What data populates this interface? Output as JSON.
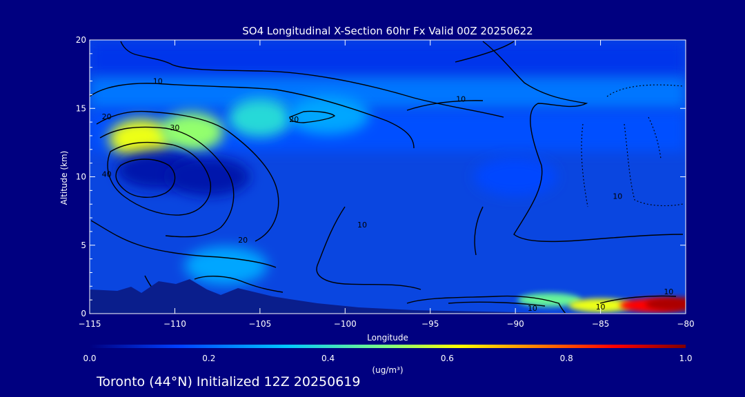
{
  "chart_data": {
    "type": "heatmap",
    "title": "SO4 Longitudinal X-Section 60hr  Fx Valid 00Z 20250622",
    "xlabel": "Longitude",
    "ylabel": "Altitude (km)",
    "xlim": [
      -115,
      -80
    ],
    "ylim": [
      0,
      20
    ],
    "x_ticks": [
      -115,
      -110,
      -105,
      -100,
      -95,
      -90,
      -85,
      -80
    ],
    "x_tick_labels": [
      "−115",
      "−110",
      "−105",
      "−100",
      "−95",
      "−90",
      "−85",
      "−80"
    ],
    "y_ticks": [
      0,
      5,
      10,
      15,
      20
    ],
    "y_tick_labels": [
      "0",
      "5",
      "10",
      "15",
      "20"
    ],
    "colorbar": {
      "range": [
        0.0,
        1.0
      ],
      "ticks": [
        0.0,
        0.2,
        0.4,
        0.6,
        0.8,
        1.0
      ],
      "tick_labels": [
        "0.0",
        "0.2",
        "0.4",
        "0.6",
        "0.8",
        "1.0"
      ],
      "units": "(ug/m³)",
      "colors": [
        "#000080",
        "#0040ff",
        "#00c8ff",
        "#80ff80",
        "#ffff00",
        "#ff8000",
        "#ff0000",
        "#800000"
      ]
    },
    "field_features": [
      {
        "lon": -112,
        "alt": 12.8,
        "value": 0.55
      },
      {
        "lon": -109,
        "alt": 13.3,
        "value": 0.45
      },
      {
        "lon": -105,
        "alt": 14.3,
        "value": 0.33
      },
      {
        "lon": -101,
        "alt": 14.5,
        "value": 0.25
      },
      {
        "lon": -111,
        "alt": 10.5,
        "value": 0.05
      },
      {
        "lon": -108,
        "alt": 10.0,
        "value": 0.05
      },
      {
        "lon": -90,
        "alt": 10.0,
        "value": 0.15
      },
      {
        "lon": -107,
        "alt": 3.5,
        "value": 0.25
      },
      {
        "lon": -88,
        "alt": 1.0,
        "value": 0.4
      },
      {
        "lon": -85,
        "alt": 0.6,
        "value": 0.55
      },
      {
        "lon": -82,
        "alt": 0.6,
        "value": 0.85
      },
      {
        "lon": -80.5,
        "alt": 0.7,
        "value": 0.95
      }
    ],
    "contour_labels": [
      {
        "text": "10",
        "lon": -111,
        "alt": 16.8
      },
      {
        "text": "20",
        "lon": -114,
        "alt": 14.2
      },
      {
        "text": "30",
        "lon": -110,
        "alt": 13.4
      },
      {
        "text": "40",
        "lon": -114,
        "alt": 10.0
      },
      {
        "text": "20",
        "lon": -103,
        "alt": 14.0
      },
      {
        "text": "10",
        "lon": -93.2,
        "alt": 15.5
      },
      {
        "text": "10",
        "lon": -99,
        "alt": 6.3
      },
      {
        "text": "20",
        "lon": -106,
        "alt": 5.2
      },
      {
        "text": "10",
        "lon": -84,
        "alt": 8.4
      },
      {
        "text": "10",
        "lon": -89,
        "alt": 0.2
      },
      {
        "text": "10",
        "lon": -85,
        "alt": 0.3
      },
      {
        "text": "10",
        "lon": -81,
        "alt": 1.4
      }
    ]
  },
  "footer": "Toronto (44°N) Initialized 12Z 20250619"
}
